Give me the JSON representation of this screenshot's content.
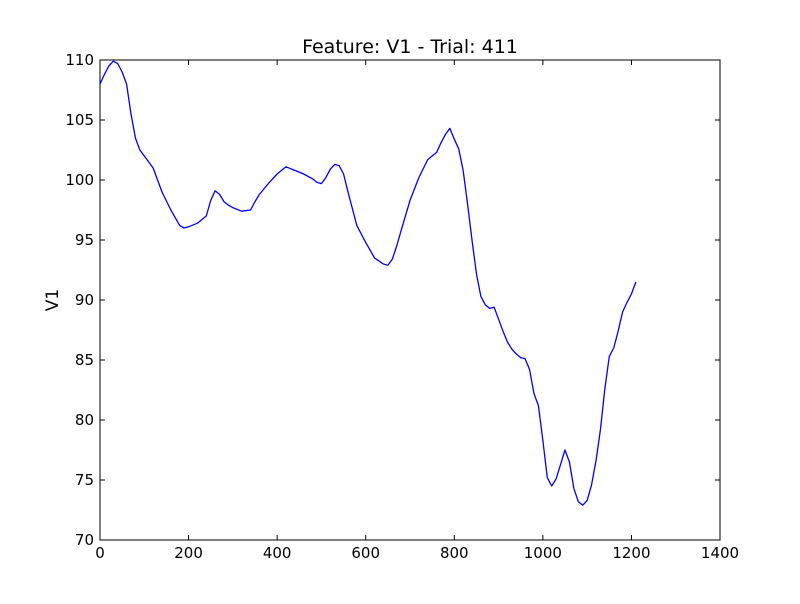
{
  "chart_data": {
    "type": "line",
    "title": "Feature: V1 - Trial: 411",
    "xlabel": "",
    "ylabel": "V1",
    "xlim": [
      0,
      1400
    ],
    "ylim": [
      70,
      110
    ],
    "xticks": [
      0,
      200,
      400,
      600,
      800,
      1000,
      1200,
      1400
    ],
    "xtick_labels": [
      "0",
      "200",
      "400",
      "600",
      "800",
      "1000",
      "1200",
      "1400"
    ],
    "yticks": [
      70,
      75,
      80,
      85,
      90,
      95,
      100,
      105,
      110
    ],
    "ytick_labels": [
      "70",
      "75",
      "80",
      "85",
      "90",
      "95",
      "100",
      "105",
      "110"
    ],
    "grid": false,
    "series": [
      {
        "color": "#0000ff",
        "x": [
          0,
          10,
          20,
          30,
          40,
          50,
          60,
          70,
          80,
          90,
          100,
          120,
          140,
          160,
          180,
          190,
          200,
          220,
          240,
          250,
          260,
          270,
          280,
          290,
          300,
          320,
          340,
          350,
          360,
          380,
          400,
          420,
          440,
          460,
          480,
          490,
          500,
          510,
          520,
          530,
          540,
          550,
          560,
          580,
          600,
          620,
          640,
          650,
          660,
          670,
          680,
          700,
          720,
          740,
          760,
          770,
          780,
          790,
          800,
          810,
          820,
          830,
          840,
          850,
          860,
          870,
          880,
          890,
          900,
          910,
          920,
          930,
          940,
          950,
          960,
          970,
          980,
          990,
          1000,
          1010,
          1020,
          1030,
          1040,
          1050,
          1060,
          1070,
          1080,
          1090,
          1100,
          1110,
          1120,
          1130,
          1140,
          1150,
          1160,
          1170,
          1180,
          1190,
          1200,
          1210
        ],
        "y": [
          108,
          108.8,
          109.5,
          109.9,
          109.7,
          109,
          108,
          105.5,
          103.5,
          102.5,
          102,
          101,
          99,
          97.5,
          96.2,
          96,
          96.1,
          96.4,
          97,
          98.3,
          99.1,
          98.8,
          98.2,
          97.9,
          97.7,
          97.4,
          97.5,
          98.2,
          98.8,
          99.7,
          100.5,
          101.1,
          100.8,
          100.5,
          100.1,
          99.8,
          99.7,
          100.2,
          100.9,
          101.3,
          101.2,
          100.5,
          99,
          96.2,
          94.8,
          93.5,
          93,
          92.9,
          93.4,
          94.5,
          95.8,
          98.3,
          100.2,
          101.7,
          102.3,
          103.1,
          103.8,
          104.3,
          103.4,
          102.6,
          100.8,
          98,
          95,
          92.2,
          90.3,
          89.6,
          89.3,
          89.4,
          88.4,
          87.4,
          86.5,
          85.9,
          85.5,
          85.2,
          85.1,
          84.2,
          82.2,
          81.2,
          78.3,
          75.2,
          74.5,
          75.1,
          76.3,
          77.5,
          76.5,
          74.3,
          73.2,
          72.9,
          73.3,
          74.6,
          76.6,
          79.2,
          82.6,
          85.3,
          86,
          87.4,
          89,
          89.8,
          90.5,
          91.5
        ]
      }
    ]
  }
}
